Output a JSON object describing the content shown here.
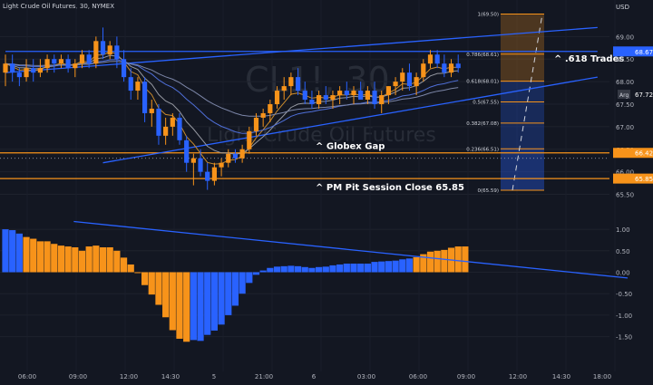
{
  "header": {
    "title": "Light Crude Oil Futures, 30, NYMEX",
    "currency": "USD"
  },
  "watermark": {
    "symbol": "CL1!, 30",
    "name": "Light Crude Oil Futures"
  },
  "colors": {
    "background": "#131722",
    "up": "#f7931a",
    "down": "#2962ff",
    "histogram_positive_up": "#f7931a",
    "histogram_blue": "#2962ff",
    "channel_line": "#2962ff",
    "horizontal_line": "#f7931a",
    "ma_orange": "#c98a2c",
    "ma_gray": "#9598a1",
    "ma_blue": "#4f6fd8",
    "fib_fill": "rgba(247,147,26,0.25)",
    "fib_fill_blue": "rgba(41,98,255,0.25)"
  },
  "chart_data": [
    {
      "type": "candlestick",
      "title": "Light Crude Oil Futures, 30, NYMEX",
      "y_axis_ticks": [
        69.0,
        68.5,
        68.0,
        67.5,
        67.0,
        66.5,
        66.0,
        65.5
      ],
      "ylim": [
        65.35,
        69.65
      ],
      "x_tick_labels": [
        "06:00",
        "09:00",
        "12:00",
        "14:30",
        "5",
        "21:00",
        "6",
        "03:00",
        "06:00",
        "09:00",
        "12:00",
        "14:30",
        "18:00"
      ],
      "price_labels": [
        {
          "label": "68.67",
          "value": 68.67,
          "color": "#2962ff"
        },
        {
          "label": "Arg",
          "value": 67.72,
          "color": "#363a45"
        },
        {
          "label": "67.72",
          "value": 67.72,
          "color": "none"
        },
        {
          "label": "66.42",
          "value": 66.42,
          "color": "#f7931a"
        },
        {
          "label": "65.85",
          "value": 65.85,
          "color": "#f7931a"
        }
      ],
      "candles": [
        [
          68.2,
          68.6,
          67.9,
          68.4
        ],
        [
          68.4,
          68.6,
          68.0,
          68.2
        ],
        [
          68.2,
          68.3,
          67.9,
          68.1
        ],
        [
          68.1,
          68.5,
          68.0,
          68.3
        ],
        [
          68.3,
          68.5,
          68.0,
          68.2
        ],
        [
          68.2,
          68.5,
          68.1,
          68.3
        ],
        [
          68.3,
          68.6,
          68.2,
          68.5
        ],
        [
          68.5,
          68.6,
          68.2,
          68.4
        ],
        [
          68.4,
          68.6,
          68.3,
          68.5
        ],
        [
          68.5,
          68.6,
          68.2,
          68.3
        ],
        [
          68.3,
          68.5,
          68.1,
          68.4
        ],
        [
          68.4,
          68.7,
          68.3,
          68.6
        ],
        [
          68.6,
          68.7,
          68.3,
          68.4
        ],
        [
          68.4,
          69.0,
          68.3,
          68.9
        ],
        [
          68.9,
          69.2,
          68.5,
          68.6
        ],
        [
          68.6,
          68.9,
          68.5,
          68.8
        ],
        [
          68.8,
          69.0,
          68.3,
          68.5
        ],
        [
          68.5,
          68.7,
          68.0,
          68.1
        ],
        [
          68.1,
          68.3,
          67.6,
          67.8
        ],
        [
          67.8,
          68.1,
          67.6,
          68.0
        ],
        [
          68.0,
          68.1,
          67.1,
          67.3
        ],
        [
          67.3,
          67.6,
          67.0,
          67.4
        ],
        [
          67.4,
          67.5,
          66.6,
          66.8
        ],
        [
          66.8,
          67.2,
          66.6,
          67.0
        ],
        [
          67.0,
          67.3,
          66.8,
          67.2
        ],
        [
          67.2,
          67.3,
          66.6,
          66.7
        ],
        [
          66.7,
          66.8,
          66.0,
          66.2
        ],
        [
          66.2,
          66.4,
          65.7,
          66.3
        ],
        [
          66.3,
          66.5,
          65.9,
          66.0
        ],
        [
          66.0,
          66.2,
          65.6,
          65.8
        ],
        [
          65.8,
          66.2,
          65.7,
          66.1
        ],
        [
          66.1,
          66.3,
          65.9,
          66.2
        ],
        [
          66.2,
          66.5,
          66.1,
          66.4
        ],
        [
          66.4,
          66.5,
          66.2,
          66.3
        ],
        [
          66.3,
          66.6,
          66.2,
          66.5
        ],
        [
          66.5,
          67.0,
          66.4,
          66.9
        ],
        [
          66.9,
          67.3,
          66.8,
          67.2
        ],
        [
          67.2,
          67.4,
          67.0,
          67.3
        ],
        [
          67.3,
          67.6,
          67.1,
          67.5
        ],
        [
          67.5,
          67.9,
          67.4,
          67.8
        ],
        [
          67.8,
          68.1,
          67.6,
          67.9
        ],
        [
          67.9,
          68.2,
          67.7,
          68.1
        ],
        [
          68.1,
          68.3,
          67.7,
          67.8
        ],
        [
          67.8,
          68.0,
          67.5,
          67.6
        ],
        [
          67.6,
          67.8,
          67.4,
          67.5
        ],
        [
          67.5,
          67.8,
          67.4,
          67.7
        ],
        [
          67.7,
          67.9,
          67.5,
          67.6
        ],
        [
          67.6,
          67.8,
          67.4,
          67.7
        ],
        [
          67.7,
          67.9,
          67.5,
          67.8
        ],
        [
          67.8,
          68.0,
          67.6,
          67.7
        ],
        [
          67.7,
          67.9,
          67.5,
          67.8
        ],
        [
          67.8,
          68.0,
          67.6,
          67.6
        ],
        [
          67.6,
          67.9,
          67.5,
          67.8
        ],
        [
          67.8,
          68.0,
          67.4,
          67.5
        ],
        [
          67.5,
          67.8,
          67.3,
          67.7
        ],
        [
          67.7,
          67.9,
          67.5,
          67.9
        ],
        [
          67.9,
          68.1,
          67.7,
          68.0
        ],
        [
          68.0,
          68.3,
          67.8,
          68.2
        ],
        [
          68.2,
          68.4,
          67.8,
          67.9
        ],
        [
          67.9,
          68.2,
          67.7,
          68.1
        ],
        [
          68.1,
          68.5,
          68.0,
          68.4
        ],
        [
          68.4,
          68.7,
          68.3,
          68.6
        ],
        [
          68.6,
          68.7,
          68.3,
          68.4
        ],
        [
          68.4,
          68.6,
          68.1,
          68.2
        ],
        [
          68.2,
          68.5,
          68.1,
          68.4
        ],
        [
          68.4,
          68.6,
          68.2,
          68.3
        ]
      ],
      "trend_lines": [
        {
          "name": "channel-upper",
          "from": [
            0,
            68.2
          ],
          "to": [
            85,
            69.2
          ]
        },
        {
          "name": "channel-lower",
          "from": [
            14,
            66.2
          ],
          "to": [
            85,
            68.1
          ]
        },
        {
          "name": "upper-horizontal",
          "from": [
            0,
            68.67
          ],
          "to": [
            85,
            68.67
          ]
        }
      ],
      "horizontal_levels": [
        {
          "name": "globex-gap-upper",
          "value": 66.42,
          "label": "^ Globex Gap"
        },
        {
          "name": "pm-pit-session-close",
          "value": 65.85,
          "label": "^ PM Pit Session Close 65.85"
        }
      ],
      "fib_levels": [
        {
          "ratio_label": "1(69.50)",
          "value": 69.5
        },
        {
          "ratio_label": "0.786(68.61)",
          "value": 68.61
        },
        {
          "ratio_label": "0.618(68.01)",
          "value": 68.01
        },
        {
          "ratio_label": "0.5(67.55)",
          "value": 67.55
        },
        {
          "ratio_label": "0.382(67.08)",
          "value": 67.08
        },
        {
          "ratio_label": "0.236(66.51)",
          "value": 66.51
        },
        {
          "ratio_label": "0(65.59)",
          "value": 65.59
        }
      ],
      "annotation": {
        "text": "^ .618 Trades",
        "value": 68.5
      }
    },
    {
      "type": "bar",
      "title": "",
      "y_axis_ticks": [
        1.0,
        0.5,
        0.0,
        -0.5,
        -1.0,
        -1.5
      ],
      "ylim": [
        -1.72,
        1.15
      ],
      "values": [
        1.0,
        0.98,
        0.9,
        0.82,
        0.78,
        0.72,
        0.72,
        0.66,
        0.62,
        0.6,
        0.58,
        0.5,
        0.6,
        0.62,
        0.58,
        0.58,
        0.5,
        0.34,
        0.18,
        -0.02,
        -0.3,
        -0.52,
        -0.76,
        -1.05,
        -1.35,
        -1.55,
        -1.62,
        -1.58,
        -1.6,
        -1.46,
        -1.36,
        -1.22,
        -1.0,
        -0.78,
        -0.5,
        -0.25,
        -0.06,
        0.04,
        0.1,
        0.13,
        0.14,
        0.15,
        0.14,
        0.12,
        0.1,
        0.12,
        0.13,
        0.16,
        0.18,
        0.2,
        0.2,
        0.2,
        0.2,
        0.24,
        0.25,
        0.26,
        0.27,
        0.3,
        0.32,
        0.35,
        0.42,
        0.48,
        0.5,
        0.52,
        0.57,
        0.6,
        0.6
      ],
      "colors_by_index": "blue for first 3, orange 3-17, orange for negatives 19-28 rising to blue 29-35, then blue/orange mix",
      "trend_line": {
        "from": [
          2,
          1.35
        ],
        "to": [
          85,
          -0.05
        ]
      }
    }
  ]
}
